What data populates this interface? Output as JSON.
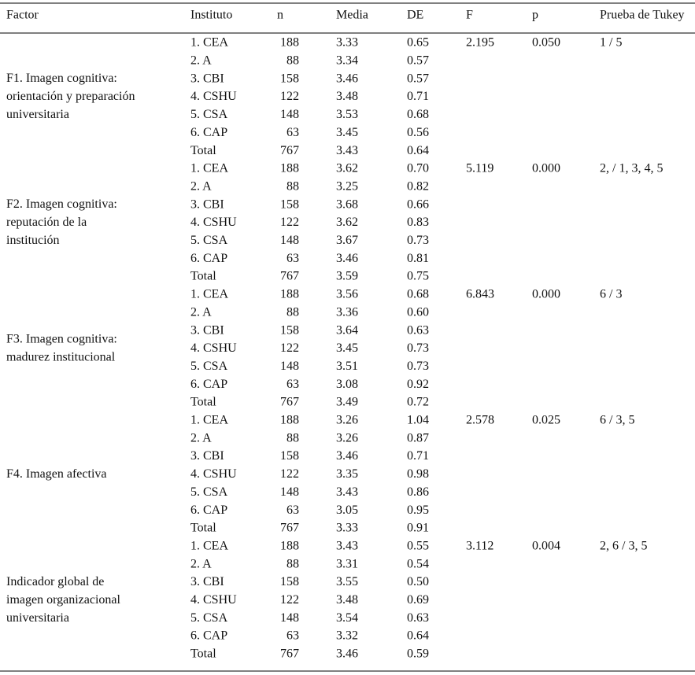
{
  "header": [
    "Factor",
    "Instituto",
    "n",
    "Media",
    "DE",
    "F",
    "p",
    "Prueba de Tukey"
  ],
  "groups": [
    {
      "factor": [
        "F1. Imagen cognitiva:",
        "orientación y preparación",
        "universitaria"
      ],
      "F": "2.195",
      "p": "0.050",
      "tukey": "1 / 5",
      "rows": [
        [
          "1. CEA",
          "188",
          "3.33",
          "0.65"
        ],
        [
          "2. A",
          "88",
          "3.34",
          "0.57"
        ],
        [
          "3. CBI",
          "158",
          "3.46",
          "0.57"
        ],
        [
          "4. CSHU",
          "122",
          "3.48",
          "0.71"
        ],
        [
          "5. CSA",
          "148",
          "3.53",
          "0.68"
        ],
        [
          "6. CAP",
          "63",
          "3.45",
          "0.56"
        ],
        [
          "Total",
          "767",
          "3.43",
          "0.64"
        ]
      ]
    },
    {
      "factor": [
        "F2. Imagen cognitiva:",
        "reputación de la",
        "institución"
      ],
      "F": "5.119",
      "p": "0.000",
      "tukey": "2, / 1, 3, 4, 5",
      "rows": [
        [
          "1. CEA",
          "188",
          "3.62",
          "0.70"
        ],
        [
          "2. A",
          "88",
          "3.25",
          "0.82"
        ],
        [
          "3. CBI",
          "158",
          "3.68",
          "0.66"
        ],
        [
          "4. CSHU",
          "122",
          "3.62",
          "0.83"
        ],
        [
          "5. CSA",
          "148",
          "3.67",
          "0.73"
        ],
        [
          "6. CAP",
          "63",
          "3.46",
          "0.81"
        ],
        [
          "Total",
          "767",
          "3.59",
          "0.75"
        ]
      ]
    },
    {
      "factor": [
        "F3. Imagen cognitiva:",
        "madurez institucional"
      ],
      "F": "6.843",
      "p": "0.000",
      "tukey": "6 / 3",
      "rows": [
        [
          "1. CEA",
          "188",
          "3.56",
          "0.68"
        ],
        [
          "2. A",
          "88",
          "3.36",
          "0.60"
        ],
        [
          "3. CBI",
          "158",
          "3.64",
          "0.63"
        ],
        [
          "4. CSHU",
          "122",
          "3.45",
          "0.73"
        ],
        [
          "5. CSA",
          "148",
          "3.51",
          "0.73"
        ],
        [
          "6. CAP",
          "63",
          "3.08",
          "0.92"
        ],
        [
          "Total",
          "767",
          "3.49",
          "0.72"
        ]
      ]
    },
    {
      "factor": [
        "F4. Imagen afectiva"
      ],
      "F": "2.578",
      "p": "0.025",
      "tukey": "6 / 3, 5",
      "rows": [
        [
          "1. CEA",
          "188",
          "3.26",
          "1.04"
        ],
        [
          "2. A",
          "88",
          "3.26",
          "0.87"
        ],
        [
          "3. CBI",
          "158",
          "3.46",
          "0.71"
        ],
        [
          "4. CSHU",
          "122",
          "3.35",
          "0.98"
        ],
        [
          "5. CSA",
          "148",
          "3.43",
          "0.86"
        ],
        [
          "6. CAP",
          "63",
          "3.05",
          "0.95"
        ],
        [
          "Total",
          "767",
          "3.33",
          "0.91"
        ]
      ]
    },
    {
      "factor": [
        "Indicador global de",
        "imagen organizacional",
        "universitaria"
      ],
      "F": "3.112",
      "p": "0.004",
      "tukey": "2, 6 / 3, 5",
      "rows": [
        [
          "1. CEA",
          "188",
          "3.43",
          "0.55"
        ],
        [
          "2. A",
          "88",
          "3.31",
          "0.54"
        ],
        [
          "3. CBI",
          "158",
          "3.55",
          "0.50"
        ],
        [
          "4. CSHU",
          "122",
          "3.48",
          "0.69"
        ],
        [
          "5. CSA",
          "148",
          "3.54",
          "0.63"
        ],
        [
          "6. CAP",
          "63",
          "3.32",
          "0.64"
        ],
        [
          "Total",
          "767",
          "3.46",
          "0.59"
        ]
      ]
    }
  ]
}
